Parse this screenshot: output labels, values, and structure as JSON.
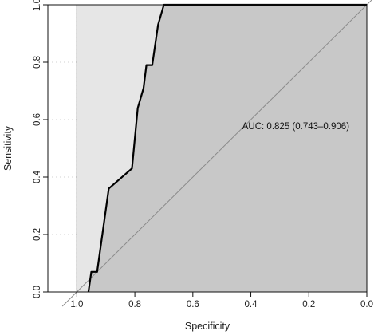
{
  "chart_data": {
    "type": "line",
    "xlabel": "Specificity",
    "ylabel": "Sensitivity",
    "xlim": [
      1.1,
      0.0
    ],
    "ylim": [
      0.0,
      1.0
    ],
    "x_reversed": true,
    "x_ticks": [
      "1.0",
      "0.8",
      "0.6",
      "0.4",
      "0.2",
      "0.0"
    ],
    "x_tick_values": [
      1.0,
      0.8,
      0.6,
      0.4,
      0.2,
      0.0
    ],
    "y_ticks": [
      "0.0",
      "0.2",
      "0.4",
      "0.6",
      "0.8",
      "1.0"
    ],
    "y_tick_values": [
      0.0,
      0.2,
      0.4,
      0.6,
      0.8,
      1.0
    ],
    "grid": true,
    "series": [
      {
        "x": [
          0.96,
          0.95,
          0.93,
          0.89,
          0.81,
          0.79,
          0.77,
          0.76,
          0.74,
          0.72,
          0.7,
          0.0
        ],
        "y": [
          0.0,
          0.07,
          0.07,
          0.36,
          0.43,
          0.64,
          0.71,
          0.79,
          0.79,
          0.93,
          1.0,
          1.0
        ]
      }
    ],
    "confidence_band": {
      "lower_x": [
        1.0,
        0.0
      ],
      "lower_y": [
        0.0,
        0.0
      ],
      "upper_x": [
        1.0,
        0.7
      ],
      "upper_y": [
        1.0,
        1.0
      ]
    },
    "annotation": "AUC: 0.825 (0.743–0.906)",
    "annotation_pos": {
      "x": 0.3,
      "y": 0.5
    }
  }
}
